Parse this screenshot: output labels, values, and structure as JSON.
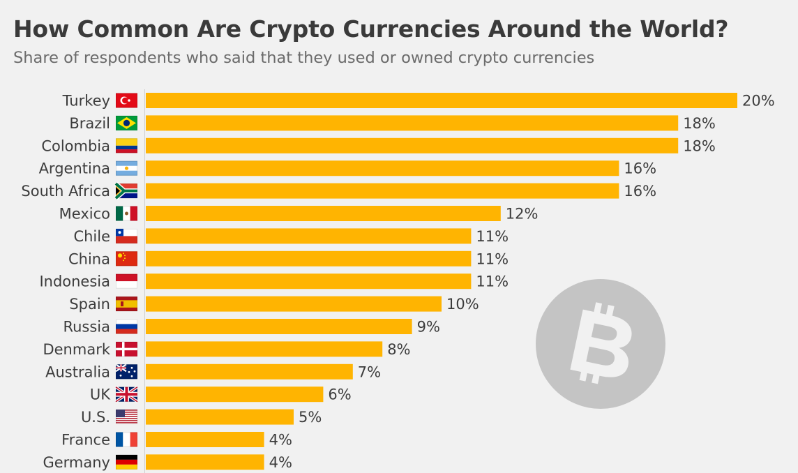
{
  "chart_data": {
    "type": "bar",
    "orientation": "horizontal",
    "title": "How Common Are Crypto Currencies Around the World?",
    "subtitle": "Share of respondents who said that they used or owned crypto currencies",
    "categories": [
      "Turkey",
      "Brazil",
      "Colombia",
      "Argentina",
      "South Africa",
      "Mexico",
      "Chile",
      "China",
      "Indonesia",
      "Spain",
      "Russia",
      "Denmark",
      "Australia",
      "UK",
      "U.S.",
      "France",
      "Germany"
    ],
    "values": [
      20,
      18,
      18,
      16,
      16,
      12,
      11,
      11,
      11,
      10,
      9,
      8,
      7,
      6,
      5,
      4,
      4
    ],
    "value_labels": [
      "20%",
      "18%",
      "18%",
      "16%",
      "16%",
      "12%",
      "11%",
      "11%",
      "11%",
      "10%",
      "9%",
      "8%",
      "7%",
      "6%",
      "5%",
      "4%",
      "4%"
    ],
    "flag_icons": [
      "turkey-flag-icon",
      "brazil-flag-icon",
      "colombia-flag-icon",
      "argentina-flag-icon",
      "south-africa-flag-icon",
      "mexico-flag-icon",
      "chile-flag-icon",
      "china-flag-icon",
      "indonesia-flag-icon",
      "spain-flag-icon",
      "russia-flag-icon",
      "denmark-flag-icon",
      "australia-flag-icon",
      "uk-flag-icon",
      "us-flag-icon",
      "france-flag-icon",
      "germany-flag-icon"
    ],
    "xlim": [
      0,
      20
    ],
    "bar_color": "#ffb401",
    "grid": false,
    "legend": "none",
    "decoration": "bitcoin-icon"
  }
}
